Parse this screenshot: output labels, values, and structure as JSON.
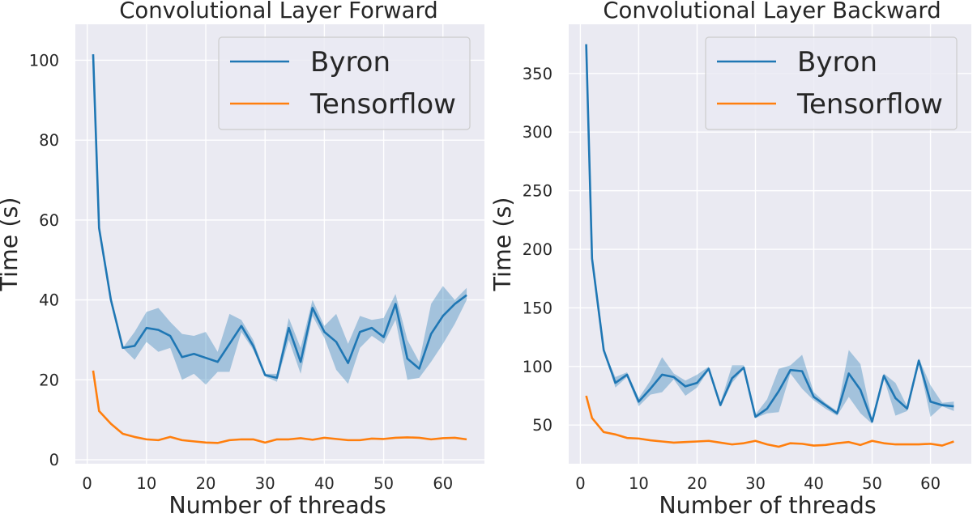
{
  "chart_data": [
    {
      "type": "line",
      "title": "Convolutional Layer Forward",
      "xlabel": "Number of threads",
      "ylabel": "Time (s)",
      "xlim": [
        -2,
        67
      ],
      "ylim": [
        -1,
        109
      ],
      "xticks": [
        0,
        10,
        20,
        30,
        40,
        50,
        60
      ],
      "yticks": [
        0,
        20,
        40,
        60,
        80,
        100
      ],
      "grid": true,
      "legend_position": "top-right",
      "series": [
        {
          "name": "Byron",
          "color": "#1f77b4",
          "band_color": "#1f77b4",
          "x": [
            1,
            2,
            4,
            6,
            8,
            10,
            12,
            14,
            16,
            18,
            20,
            22,
            24,
            26,
            28,
            30,
            32,
            34,
            36,
            38,
            40,
            42,
            44,
            46,
            48,
            50,
            52,
            54,
            56,
            58,
            60,
            62,
            64
          ],
          "y": [
            101.5,
            58.0,
            40.0,
            28.0,
            28.5,
            33.0,
            32.5,
            31.0,
            25.7,
            26.5,
            25.5,
            24.5,
            29.0,
            33.5,
            28.5,
            21.2,
            20.5,
            33.0,
            24.5,
            38.0,
            32.0,
            29.5,
            24.2,
            32.0,
            33.0,
            30.7,
            39.0,
            25.3,
            22.8,
            31.5,
            36.0,
            39.0,
            41.2
          ],
          "lower": [
            101.5,
            58.0,
            40.0,
            28.0,
            25.0,
            29.5,
            27.0,
            28.0,
            20.0,
            21.5,
            18.8,
            22.0,
            22.0,
            32.0,
            27.5,
            20.8,
            19.5,
            30.0,
            21.5,
            36.0,
            30.5,
            22.5,
            19.0,
            28.0,
            31.0,
            29.0,
            35.0,
            20.0,
            20.5,
            24.5,
            29.0,
            34.0,
            40.0
          ],
          "upper": [
            101.5,
            58.0,
            40.0,
            28.0,
            32.0,
            37.0,
            38.0,
            34.5,
            31.5,
            31.0,
            32.0,
            27.0,
            36.5,
            35.0,
            30.0,
            21.5,
            21.5,
            35.5,
            28.0,
            40.0,
            33.5,
            36.5,
            29.0,
            36.0,
            35.0,
            35.5,
            41.5,
            30.0,
            24.5,
            39.0,
            43.5,
            40.0,
            43.0
          ]
        },
        {
          "name": "Tensorflow",
          "color": "#ff7f0e",
          "x": [
            1,
            2,
            4,
            6,
            8,
            10,
            12,
            14,
            16,
            18,
            20,
            22,
            24,
            26,
            28,
            30,
            32,
            34,
            36,
            38,
            40,
            42,
            44,
            46,
            48,
            50,
            52,
            54,
            56,
            58,
            60,
            62,
            64
          ],
          "y": [
            22.3,
            12.2,
            9.0,
            6.5,
            5.7,
            5.1,
            4.9,
            5.7,
            4.9,
            4.6,
            4.3,
            4.2,
            4.9,
            5.1,
            5.1,
            4.3,
            5.1,
            5.1,
            5.4,
            5.0,
            5.5,
            5.2,
            4.9,
            4.9,
            5.3,
            5.2,
            5.5,
            5.6,
            5.5,
            5.1,
            5.4,
            5.5,
            5.1
          ]
        }
      ]
    },
    {
      "type": "line",
      "title": "Convolutional Layer Backward",
      "xlabel": "Number of threads",
      "ylabel": "Time (s)",
      "xlim": [
        -2,
        67
      ],
      "ylim": [
        17,
        392
      ],
      "xticks": [
        0,
        10,
        20,
        30,
        40,
        50,
        60
      ],
      "yticks": [
        50,
        100,
        150,
        200,
        250,
        300,
        350
      ],
      "grid": true,
      "legend_position": "top-right",
      "series": [
        {
          "name": "Byron",
          "color": "#1f77b4",
          "band_color": "#1f77b4",
          "x": [
            1,
            2,
            4,
            6,
            8,
            10,
            12,
            14,
            16,
            18,
            20,
            22,
            24,
            26,
            28,
            30,
            32,
            34,
            36,
            38,
            40,
            42,
            44,
            46,
            48,
            50,
            52,
            54,
            56,
            58,
            60,
            62,
            64
          ],
          "y": [
            375,
            192,
            114,
            86,
            93,
            70,
            81,
            93,
            91,
            83,
            86,
            98,
            67,
            90,
            99,
            57,
            64,
            79,
            97,
            96,
            74,
            67,
            60,
            94,
            80,
            53,
            92,
            73,
            64,
            105,
            70,
            67,
            66
          ],
          "lower": [
            375,
            192,
            114,
            82,
            91,
            66,
            76,
            78,
            89,
            75,
            82,
            97,
            66,
            86,
            98,
            56,
            60,
            61,
            94,
            81,
            71,
            64,
            58,
            74,
            60,
            51,
            90,
            58,
            62,
            103,
            57,
            66,
            62
          ],
          "upper": [
            375,
            192,
            114,
            91,
            95,
            73,
            88,
            108,
            94,
            88,
            93,
            100,
            69,
            101,
            101,
            59,
            72,
            98,
            101,
            110,
            78,
            69,
            62,
            114,
            102,
            55,
            94,
            86,
            66,
            107,
            84,
            69,
            70
          ]
        },
        {
          "name": "Tensorflow",
          "color": "#ff7f0e",
          "x": [
            1,
            2,
            4,
            6,
            8,
            10,
            12,
            14,
            16,
            18,
            20,
            22,
            24,
            26,
            28,
            30,
            32,
            34,
            36,
            38,
            40,
            42,
            44,
            46,
            48,
            50,
            52,
            54,
            56,
            58,
            60,
            62,
            64
          ],
          "y": [
            75,
            56,
            44,
            42,
            39,
            38.5,
            37,
            36,
            35,
            35.5,
            36,
            36.5,
            35,
            33.5,
            34.5,
            36.5,
            33.5,
            31.5,
            34.5,
            34,
            32.5,
            33,
            34.5,
            35.5,
            33,
            36.5,
            34.5,
            33.5,
            33.5,
            33.5,
            34,
            32.5,
            36
          ]
        }
      ]
    }
  ]
}
